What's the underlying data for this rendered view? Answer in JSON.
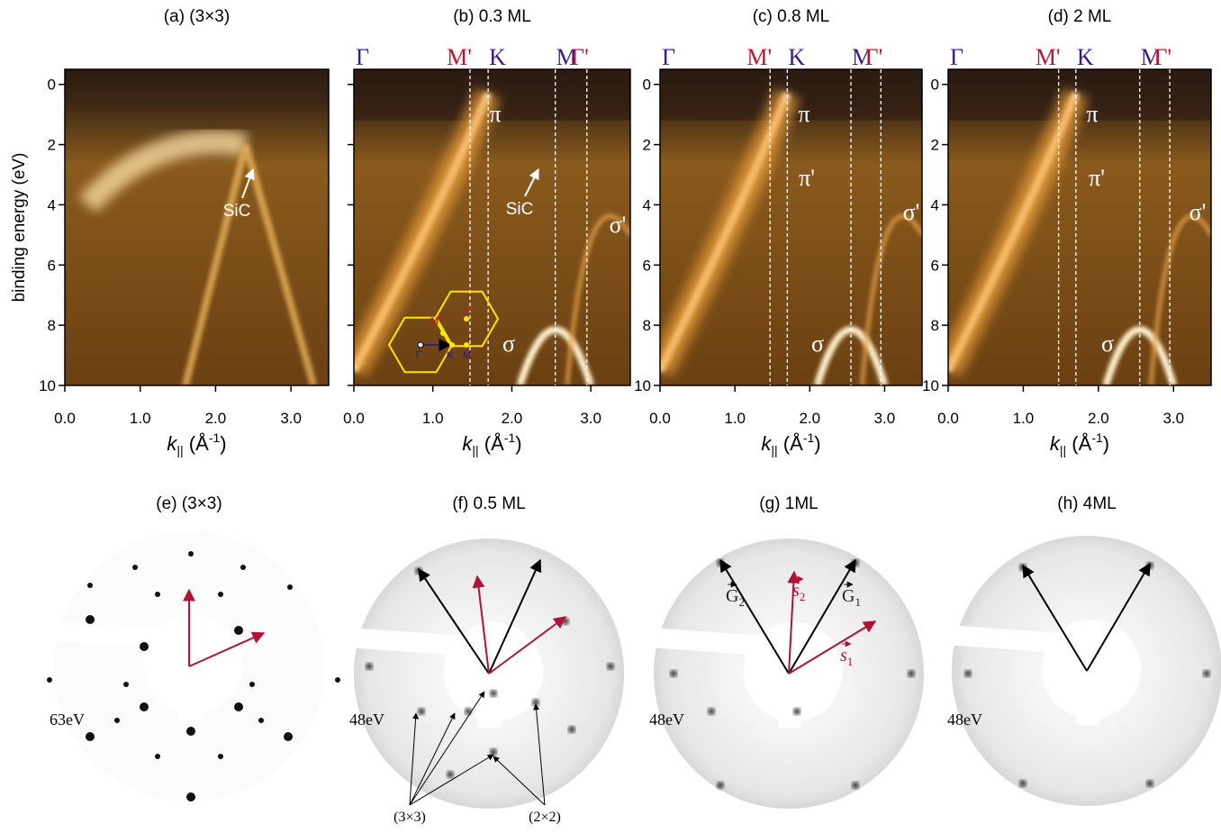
{
  "arpes": {
    "panels": [
      {
        "title": "(a) (3×3)",
        "annotations": [
          "SiC"
        ]
      },
      {
        "title": "(b) 0.3 ML",
        "annotations": [
          "π",
          "SiC",
          "σ",
          "σ'"
        ]
      },
      {
        "title": "(c) 0.8 ML",
        "annotations": [
          "π",
          "π'",
          "σ",
          "σ'"
        ]
      },
      {
        "title": "(d) 2 ML",
        "annotations": [
          "π",
          "π'",
          "σ",
          "σ'"
        ]
      }
    ],
    "y_label": "binding energy (eV)",
    "x_label": {
      "symbol": "k",
      "sub": "||",
      "unit": " (Å",
      "sup": "-1",
      "close": ")"
    },
    "xlim": [
      0,
      3.5
    ],
    "xticks": [
      {
        "value": 0,
        "label": "0.0"
      },
      {
        "value": 1,
        "label": "1.0"
      },
      {
        "value": 2,
        "label": "2.0"
      },
      {
        "value": 3,
        "label": "3.0"
      }
    ],
    "ylim": [
      -0.5,
      10
    ],
    "yticks": [
      0,
      2,
      4,
      6,
      8,
      10
    ],
    "symmetry_points": [
      {
        "label": "Γ",
        "k": 0,
        "color": "#3b1a86"
      },
      {
        "label": "M'",
        "k": 1.47,
        "color": "#c8102e"
      },
      {
        "label": "K",
        "k": 1.7,
        "color": "#3b1a86"
      },
      {
        "label": "M",
        "k": 2.55,
        "color": "#3b1a86"
      },
      {
        "label": "Γ'",
        "k": 2.95,
        "color": "#c8102e"
      }
    ]
  },
  "leed": {
    "panels": [
      {
        "title": "(e) (3×3)",
        "energy": "63eV"
      },
      {
        "title": "(f) 0.5 ML",
        "energy": "48eV",
        "spot_labels": [
          "(3×3)",
          "(2×2)"
        ]
      },
      {
        "title": "(g) 1ML",
        "energy": "48eV",
        "vectors": [
          {
            "symbol": "G",
            "sub": "2"
          },
          {
            "symbol": "G",
            "sub": "1"
          },
          {
            "symbol": "s",
            "sub": "2"
          },
          {
            "symbol": "s",
            "sub": "1"
          }
        ]
      },
      {
        "title": "(h) 4ML",
        "energy": "48eV"
      }
    ]
  }
}
